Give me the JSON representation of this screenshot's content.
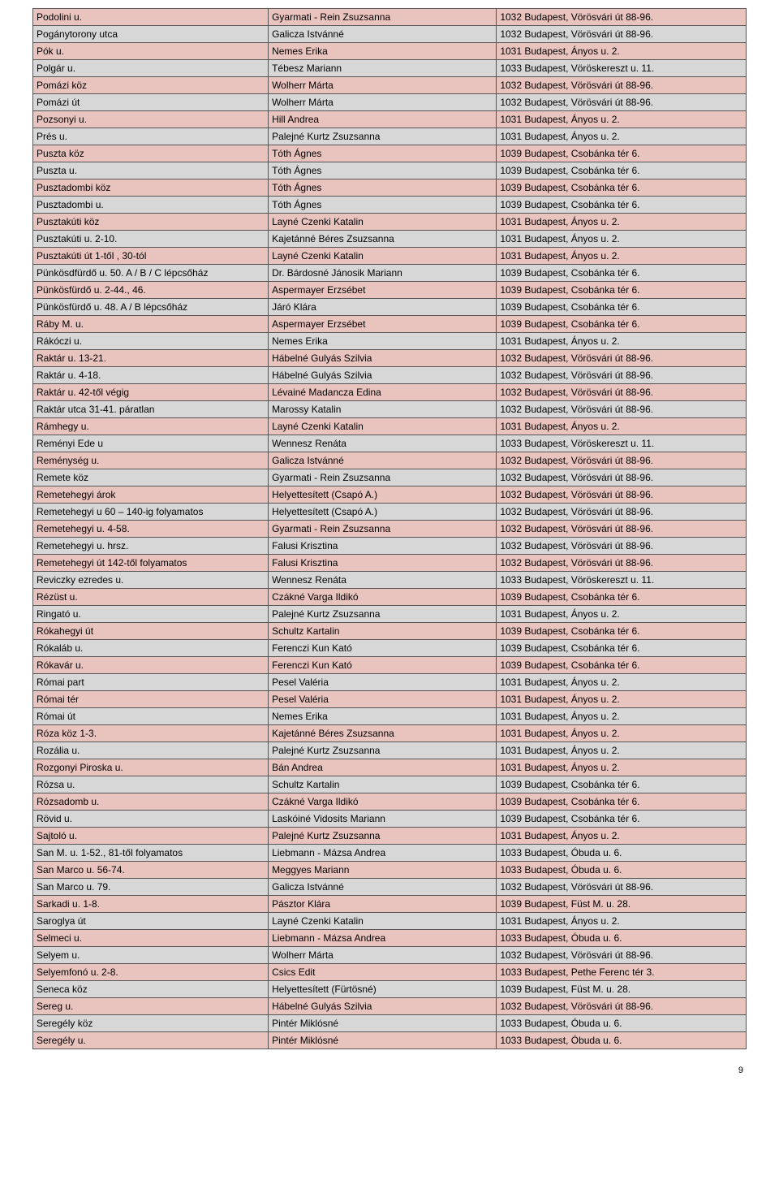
{
  "page_number": "9",
  "columns": {
    "width1": "33%",
    "width2": "32%",
    "width3": "35%"
  },
  "rows": [
    {
      "shade": "pink",
      "c1": "Podolini u.",
      "c2": "Gyarmati - Rein Zsuzsanna",
      "c3": "1032 Budapest, Vörösvári út 88-96."
    },
    {
      "shade": "gray",
      "c1": "Pogánytorony utca",
      "c2": "Galicza Istvánné",
      "c3": "1032 Budapest, Vörösvári út 88-96."
    },
    {
      "shade": "pink",
      "c1": "Pók u.",
      "c2": "Nemes Erika",
      "c3": "1031 Budapest, Ányos u. 2."
    },
    {
      "shade": "gray",
      "c1": "Polgár u.",
      "c2": "Tébesz Mariann",
      "c3": "1033 Budapest, Vöröskereszt u. 11."
    },
    {
      "shade": "pink",
      "c1": "Pomázi köz",
      "c2": "Wolherr Márta",
      "c3": "1032 Budapest, Vörösvári út 88-96."
    },
    {
      "shade": "gray",
      "c1": "Pomázi út",
      "c2": "Wolherr Márta",
      "c3": "1032 Budapest, Vörösvári út 88-96."
    },
    {
      "shade": "pink",
      "c1": "Pozsonyi u.",
      "c2": "Hill Andrea",
      "c3": "1031 Budapest, Ányos u. 2."
    },
    {
      "shade": "gray",
      "c1": "Prés u.",
      "c2": "Palejné Kurtz Zsuzsanna",
      "c3": "1031 Budapest, Ányos u. 2."
    },
    {
      "shade": "pink",
      "c1": "Puszta köz",
      "c2": "Tóth Ágnes",
      "c3": "1039 Budapest, Csobánka tér 6."
    },
    {
      "shade": "gray",
      "c1": "Puszta u.",
      "c2": "Tóth Ágnes",
      "c3": "1039 Budapest, Csobánka tér 6."
    },
    {
      "shade": "pink",
      "c1": "Pusztadombi köz",
      "c2": "Tóth Ágnes",
      "c3": "1039 Budapest, Csobánka tér 6."
    },
    {
      "shade": "gray",
      "c1": "Pusztadombi u.",
      "c2": "Tóth Ágnes",
      "c3": "1039 Budapest, Csobánka tér 6."
    },
    {
      "shade": "pink",
      "c1": "Pusztakúti köz",
      "c2": "Layné Czenki Katalin",
      "c3": "1031 Budapest, Ányos u. 2."
    },
    {
      "shade": "gray",
      "c1": "Pusztakúti u. 2-10.",
      "c2": "Kajetánné Béres Zsuzsanna",
      "c3": "1031 Budapest, Ányos u. 2."
    },
    {
      "shade": "pink",
      "c1": "Pusztakúti út 1-től , 30-tól",
      "c2": "Layné Czenki Katalin",
      "c3": "1031 Budapest, Ányos u. 2."
    },
    {
      "shade": "gray",
      "c1": "Pünkösdfürdő u. 50. A / B / C lépcsőház",
      "c2": "Dr. Bárdosné Jánosik Mariann",
      "c3": "1039 Budapest, Csobánka tér 6."
    },
    {
      "shade": "pink",
      "c1": "Pünkösfürdő u. 2-44., 46.",
      "c2": "Aspermayer Erzsébet",
      "c3": "1039 Budapest, Csobánka tér 6."
    },
    {
      "shade": "gray",
      "c1": "Pünkösfürdő u. 48. A / B lépcsőház",
      "c2": "Járó Klára",
      "c3": "1039 Budapest, Csobánka tér 6."
    },
    {
      "shade": "pink",
      "c1": "Ráby M. u.",
      "c2": "Aspermayer Erzsébet",
      "c3": "1039 Budapest, Csobánka tér 6."
    },
    {
      "shade": "gray",
      "c1": "Rákóczi u.",
      "c2": "Nemes Erika",
      "c3": "1031 Budapest, Ányos u. 2."
    },
    {
      "shade": "pink",
      "c1": "Raktár u. 13-21.",
      "c2": "Hábelné Gulyás Szilvia",
      "c3": "1032 Budapest, Vörösvári út 88-96."
    },
    {
      "shade": "gray",
      "c1": "Raktár u. 4-18.",
      "c2": "Hábelné Gulyás Szilvia",
      "c3": "1032 Budapest, Vörösvári út 88-96."
    },
    {
      "shade": "pink",
      "c1": "Raktár u. 42-től végig",
      "c2": "Lévainé Madancza Edina",
      "c3": "1032 Budapest, Vörösvári út 88-96."
    },
    {
      "shade": "gray",
      "c1": "Raktár utca 31-41. páratlan",
      "c2": "Marossy Katalin",
      "c3": "1032 Budapest, Vörösvári út 88-96."
    },
    {
      "shade": "pink",
      "c1": "Rámhegy u.",
      "c2": "Layné Czenki Katalin",
      "c3": "1031 Budapest, Ányos u. 2."
    },
    {
      "shade": "gray",
      "c1": "Reményi Ede u",
      "c2": "Wennesz Renáta",
      "c3": "1033 Budapest, Vöröskereszt u. 11."
    },
    {
      "shade": "pink",
      "c1": "Reménység u.",
      "c2": "Galicza Istvánné",
      "c3": "1032 Budapest, Vörösvári út 88-96."
    },
    {
      "shade": "gray",
      "c1": "Remete köz",
      "c2": "Gyarmati - Rein Zsuzsanna",
      "c3": "1032 Budapest, Vörösvári út 88-96."
    },
    {
      "shade": "pink",
      "c1": "Remetehegyi árok",
      "c2": "Helyettesített (Csapó A.)",
      "c3": "1032 Budapest, Vörösvári út 88-96."
    },
    {
      "shade": "gray",
      "c1": "Remetehegyi u 60 – 140-ig folyamatos",
      "c2": "Helyettesített (Csapó A.)",
      "c3": "1032 Budapest, Vörösvári út 88-96."
    },
    {
      "shade": "pink",
      "c1": "Remetehegyi u. 4-58.",
      "c2": "Gyarmati - Rein Zsuzsanna",
      "c3": "1032 Budapest, Vörösvári út 88-96."
    },
    {
      "shade": "gray",
      "c1": "Remetehegyi u. hrsz.",
      "c2": "Falusi Krisztina",
      "c3": "1032 Budapest, Vörösvári út 88-96."
    },
    {
      "shade": "pink",
      "c1": "Remetehegyi út 142-től folyamatos",
      "c2": "Falusi Krisztina",
      "c3": "1032 Budapest, Vörösvári út 88-96."
    },
    {
      "shade": "gray",
      "c1": "Reviczky ezredes u.",
      "c2": "Wennesz Renáta",
      "c3": "1033 Budapest, Vöröskereszt u. 11."
    },
    {
      "shade": "pink",
      "c1": "Rézüst u.",
      "c2": "Czákné Varga Ildikó",
      "c3": "1039 Budapest, Csobánka tér 6."
    },
    {
      "shade": "gray",
      "c1": "Ringató u.",
      "c2": "Palejné Kurtz Zsuzsanna",
      "c3": "1031 Budapest, Ányos u. 2."
    },
    {
      "shade": "pink",
      "c1": "Rókahegyi út",
      "c2": "Schultz Kartalin",
      "c3": "1039 Budapest, Csobánka tér 6."
    },
    {
      "shade": "gray",
      "c1": "Rókaláb u.",
      "c2": "Ferenczi Kun Kató",
      "c3": "1039 Budapest, Csobánka tér 6."
    },
    {
      "shade": "pink",
      "c1": "Rókavár u.",
      "c2": "Ferenczi Kun Kató",
      "c3": "1039 Budapest, Csobánka tér 6."
    },
    {
      "shade": "gray",
      "c1": "Római part",
      "c2": "Pesel Valéria",
      "c3": "1031 Budapest, Ányos u. 2."
    },
    {
      "shade": "pink",
      "c1": "Római tér",
      "c2": "Pesel Valéria",
      "c3": "1031 Budapest, Ányos u. 2."
    },
    {
      "shade": "gray",
      "c1": "Római út",
      "c2": "Nemes Erika",
      "c3": "1031 Budapest, Ányos u. 2."
    },
    {
      "shade": "pink",
      "c1": "Róza köz 1-3.",
      "c2": "Kajetánné Béres Zsuzsanna",
      "c3": "1031 Budapest, Ányos u. 2."
    },
    {
      "shade": "gray",
      "c1": "Rozália u.",
      "c2": "Palejné Kurtz Zsuzsanna",
      "c3": "1031 Budapest, Ányos u. 2."
    },
    {
      "shade": "pink",
      "c1": "Rozgonyi Piroska u.",
      "c2": "Bán Andrea",
      "c3": "1031 Budapest, Ányos u. 2."
    },
    {
      "shade": "gray",
      "c1": "Rózsa u.",
      "c2": "Schultz Kartalin",
      "c3": "1039 Budapest, Csobánka tér 6."
    },
    {
      "shade": "pink",
      "c1": "Rózsadomb u.",
      "c2": "Czákné Varga Ildikó",
      "c3": "1039 Budapest, Csobánka tér 6."
    },
    {
      "shade": "gray",
      "c1": "Rövid u.",
      "c2": "Laskóiné Vidosits Mariann",
      "c3": "1039 Budapest, Csobánka tér 6."
    },
    {
      "shade": "pink",
      "c1": "Sajtoló u.",
      "c2": "Palejné Kurtz Zsuzsanna",
      "c3": "1031 Budapest, Ányos u. 2."
    },
    {
      "shade": "gray",
      "c1": "San M. u. 1-52., 81-től folyamatos",
      "c2": "Liebmann - Mázsa Andrea",
      "c3": "1033 Budapest, Óbuda u. 6."
    },
    {
      "shade": "pink",
      "c1": "San Marco u. 56-74.",
      "c2": "Meggyes Mariann",
      "c3": "1033 Budapest, Óbuda u. 6."
    },
    {
      "shade": "gray",
      "c1": "San Marco u. 79.",
      "c2": "Galicza Istvánné",
      "c3": "1032 Budapest, Vörösvári út 88-96."
    },
    {
      "shade": "pink",
      "c1": "Sarkadi u. 1-8.",
      "c2": "Pásztor Klára",
      "c3": "1039 Budapest, Füst M. u. 28."
    },
    {
      "shade": "gray",
      "c1": "Saroglya út",
      "c2": "Layné Czenki Katalin",
      "c3": "1031 Budapest, Ányos u. 2."
    },
    {
      "shade": "pink",
      "c1": "Selmeci u.",
      "c2": "Liebmann - Mázsa Andrea",
      "c3": "1033 Budapest, Óbuda u. 6."
    },
    {
      "shade": "gray",
      "c1": "Selyem u.",
      "c2": "Wolherr Márta",
      "c3": "1032 Budapest, Vörösvári út 88-96."
    },
    {
      "shade": "pink",
      "c1": "Selyemfonó u. 2-8.",
      "c2": "Csics Edit",
      "c3": "1033 Budapest, Pethe Ferenc tér 3."
    },
    {
      "shade": "gray",
      "c1": "Seneca köz",
      "c2": "Helyettesített (Fürtösné)",
      "c3": "1039 Budapest, Füst M. u. 28."
    },
    {
      "shade": "pink",
      "c1": "Sereg u.",
      "c2": "Hábelné Gulyás Szilvia",
      "c3": "1032 Budapest, Vörösvári út 88-96."
    },
    {
      "shade": "gray",
      "c1": "Seregély köz",
      "c2": "Pintér Miklósné",
      "c3": "1033 Budapest, Óbuda u. 6."
    },
    {
      "shade": "pink",
      "c1": "Seregély u.",
      "c2": "Pintér Miklósné",
      "c3": "1033 Budapest, Óbuda u. 6."
    }
  ]
}
